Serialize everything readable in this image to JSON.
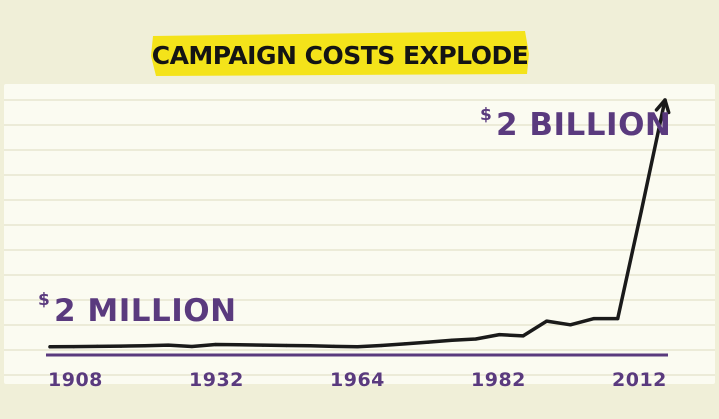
{
  "colors": {
    "page_background": "#f0efd8",
    "paper": "#fbfbf1",
    "paper_lines": "#e7e6cf",
    "title_highlight": "#f4e31a",
    "title_text": "#141414",
    "accent_purple": "#5a3a7e",
    "series_line": "#1a1a1a"
  },
  "chart_data": {
    "type": "line",
    "title": "CAMPAIGN COSTS EXPLODE",
    "xlabel": "",
    "ylabel": "",
    "x_ticks": [
      "1908",
      "1932",
      "1964",
      "1982",
      "2012"
    ],
    "xlim": [
      1908,
      2012
    ],
    "ylim": [
      0,
      2.0
    ],
    "y_unit": "billion dollars",
    "grid": true,
    "series": [
      {
        "x": [
          1908,
          1912,
          1916,
          1920,
          1924,
          1928,
          1932,
          1936,
          1940,
          1944,
          1948,
          1952,
          1956,
          1960,
          1964,
          1968,
          1972,
          1976,
          1980,
          1984,
          1988,
          1992,
          1996,
          2000,
          2004,
          2008,
          2012
        ],
        "y": [
          0.002,
          0.003,
          0.005,
          0.007,
          0.01,
          0.015,
          0.004,
          0.02,
          0.018,
          0.015,
          0.012,
          0.01,
          0.005,
          0.002,
          0.012,
          0.025,
          0.04,
          0.055,
          0.065,
          0.1,
          0.09,
          0.21,
          0.18,
          0.23,
          0.23,
          1.1,
          2.0
        ]
      }
    ],
    "annotations": {
      "start": {
        "dollar": "$",
        "text": "2 MILLION"
      },
      "end": {
        "dollar": "$",
        "text": "2 BILLION"
      }
    }
  }
}
